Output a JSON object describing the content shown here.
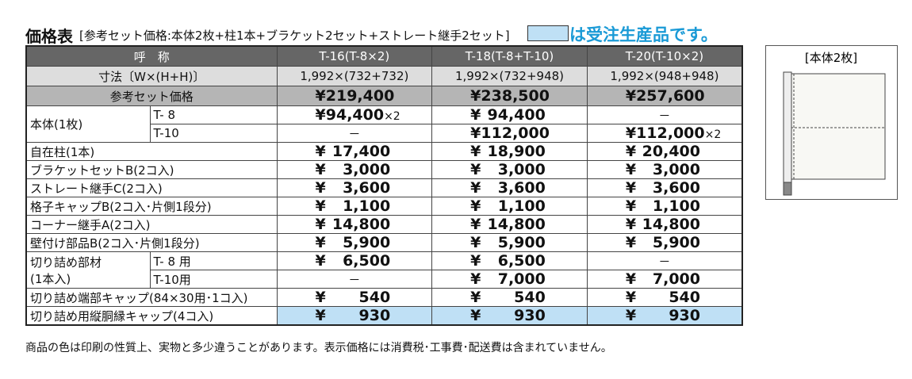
{
  "header": {
    "title": "価格表",
    "subtitle": "[参考セット価格:本体2枚+柱1本+ブラケット2セット+ストレート継手2セット]",
    "legend": "は受注生産品です。"
  },
  "table": {
    "head": {
      "label": "呼　称",
      "columns": [
        "T-16(T-8×2)",
        "T-18(T-8+T-10)",
        "T-20(T-10×2)"
      ]
    },
    "size": {
      "label": "寸法〔W×(H+H)〕",
      "values": [
        "1,992×(732+732)",
        "1,992×(732+948)",
        "1,992×(948+948)"
      ]
    },
    "set_price": {
      "label": "参考セット価格",
      "values": [
        {
          "currency": "¥",
          "amount": "219,400"
        },
        {
          "currency": "¥",
          "amount": "238,500"
        },
        {
          "currency": "¥",
          "amount": "257,600"
        }
      ]
    },
    "rows": [
      {
        "label": [
          "本体(1枚)"
        ],
        "subrows": [
          {
            "label": "T- 8",
            "cells": [
              {
                "currency": "¥",
                "amount": "94,400",
                "note": "×2"
              },
              {
                "currency": "¥",
                "amount": "94,400"
              },
              "－"
            ]
          },
          {
            "label": "T-10",
            "cells": [
              "－",
              {
                "currency": "¥",
                "amount": "112,000"
              },
              {
                "currency": "¥",
                "amount": "112,000",
                "note": "×2"
              }
            ]
          }
        ]
      },
      {
        "label": [
          "自在柱(1本)"
        ],
        "cells": [
          {
            "currency": "¥",
            "amount": "17,400"
          },
          {
            "currency": "¥",
            "amount": "18,900"
          },
          {
            "currency": "¥",
            "amount": "20,400"
          }
        ]
      },
      {
        "label": [
          "ブラケットセットB(2コ入)"
        ],
        "cells": [
          {
            "currency": "¥",
            "amount": "3,000"
          },
          {
            "currency": "¥",
            "amount": "3,000"
          },
          {
            "currency": "¥",
            "amount": "3,000"
          }
        ]
      },
      {
        "label": [
          "ストレート継手C(2コ入)"
        ],
        "cells": [
          {
            "currency": "¥",
            "amount": "3,600"
          },
          {
            "currency": "¥",
            "amount": "3,600"
          },
          {
            "currency": "¥",
            "amount": "3,600"
          }
        ]
      },
      {
        "label": [
          "格子キャップB(2コ入･片側1段分)"
        ],
        "cells": [
          {
            "currency": "¥",
            "amount": "1,100"
          },
          {
            "currency": "¥",
            "amount": "1,100"
          },
          {
            "currency": "¥",
            "amount": "1,100"
          }
        ]
      },
      {
        "label": [
          "コーナー継手A(2コ入)"
        ],
        "cells": [
          {
            "currency": "¥",
            "amount": "14,800"
          },
          {
            "currency": "¥",
            "amount": "14,800"
          },
          {
            "currency": "¥",
            "amount": "14,800"
          }
        ]
      },
      {
        "label": [
          "壁付け部品B(2コ入･片側1段分)"
        ],
        "cells": [
          {
            "currency": "¥",
            "amount": "5,900"
          },
          {
            "currency": "¥",
            "amount": "5,900"
          },
          {
            "currency": "¥",
            "amount": "5,900"
          }
        ]
      },
      {
        "label": [
          "切り詰め部材",
          "(1本入)"
        ],
        "subrows": [
          {
            "label": "T- 8 用",
            "cells": [
              {
                "currency": "¥",
                "amount": "6,500"
              },
              {
                "currency": "¥",
                "amount": "6,500"
              },
              "－"
            ]
          },
          {
            "label": "T-10用",
            "cells": [
              "－",
              {
                "currency": "¥",
                "amount": "7,000"
              },
              {
                "currency": "¥",
                "amount": "7,000"
              }
            ]
          }
        ]
      },
      {
        "label": [
          "切り詰め端部キャップ(84×30用･1コ入)"
        ],
        "cells": [
          {
            "currency": "¥",
            "amount": "540"
          },
          {
            "currency": "¥",
            "amount": "540"
          },
          {
            "currency": "¥",
            "amount": "540"
          }
        ]
      },
      {
        "label": [
          "切り詰め用縦胴縁キャップ(4コ入)"
        ],
        "highlight": true,
        "cells": [
          {
            "currency": "¥",
            "amount": "930"
          },
          {
            "currency": "¥",
            "amount": "930"
          },
          {
            "currency": "¥",
            "amount": "930"
          }
        ]
      }
    ]
  },
  "diagram": {
    "label": "[本体2枚]"
  },
  "footnote": "商品の色は印刷の性質上、実物と多少違うことがあります。表示価格には消費税･工事費･配送費は含まれていません。"
}
